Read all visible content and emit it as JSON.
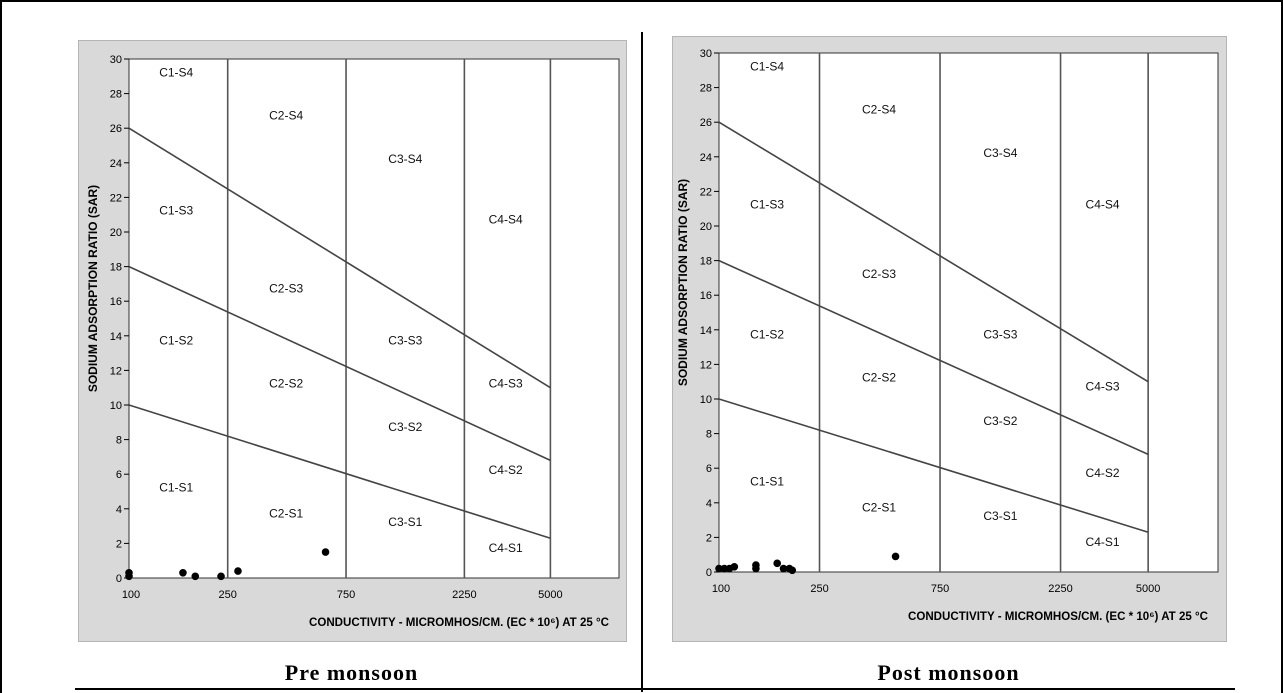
{
  "figure": {
    "captions": [
      "Pre monsoon",
      "Post monsoon"
    ]
  },
  "chart_data": [
    {
      "type": "scatter",
      "title": "",
      "xlabel": "CONDUCTIVITY - MICROMHOS/CM. (EC * 10⁶) AT 25 °C",
      "ylabel": "SODIUM ADSORPTION RATIO (SAR)",
      "x_ticks": [
        "100",
        "250",
        "750",
        "2250",
        "5000"
      ],
      "y_ticks": [
        "0",
        "2",
        "4",
        "6",
        "8",
        "10",
        "12",
        "14",
        "16",
        "18",
        "20",
        "22",
        "24",
        "26",
        "28",
        "30"
      ],
      "ylim": [
        0,
        30
      ],
      "x_scale": "log",
      "class_boundaries_ec": [
        250,
        750,
        2250
      ],
      "sar_hazard_lines": [
        {
          "from": [
            100,
            26
          ],
          "to": [
            5000,
            11
          ]
        },
        {
          "from": [
            100,
            18
          ],
          "to": [
            5000,
            6.8
          ]
        },
        {
          "from": [
            100,
            10
          ],
          "to": [
            5000,
            2.3
          ]
        }
      ],
      "zone_labels": [
        {
          "text": "C1-S4",
          "ec": 155,
          "sar": 29
        },
        {
          "text": "C1-S3",
          "ec": 155,
          "sar": 21
        },
        {
          "text": "C1-S2",
          "ec": 155,
          "sar": 13.5
        },
        {
          "text": "C1-S1",
          "ec": 155,
          "sar": 5
        },
        {
          "text": "C2-S4",
          "ec": 430,
          "sar": 26.5
        },
        {
          "text": "C2-S3",
          "ec": 430,
          "sar": 16.5
        },
        {
          "text": "C2-S2",
          "ec": 430,
          "sar": 11
        },
        {
          "text": "C2-S1",
          "ec": 430,
          "sar": 3.5
        },
        {
          "text": "C3-S4",
          "ec": 1300,
          "sar": 24
        },
        {
          "text": "C3-S3",
          "ec": 1300,
          "sar": 13.5
        },
        {
          "text": "C3-S2",
          "ec": 1300,
          "sar": 8.5
        },
        {
          "text": "C3-S1",
          "ec": 1300,
          "sar": 3
        },
        {
          "text": "C4-S4",
          "ec": 3300,
          "sar": 20.5
        },
        {
          "text": "C4-S3",
          "ec": 3300,
          "sar": 11
        },
        {
          "text": "C4-S2",
          "ec": 3300,
          "sar": 6
        },
        {
          "text": "C4-S1",
          "ec": 3300,
          "sar": 1.5
        }
      ],
      "points": [
        {
          "ec": 100,
          "sar": 0.3
        },
        {
          "ec": 100,
          "sar": 0.1
        },
        {
          "ec": 165,
          "sar": 0.3
        },
        {
          "ec": 185,
          "sar": 0.1
        },
        {
          "ec": 235,
          "sar": 0.1
        },
        {
          "ec": 275,
          "sar": 0.4
        },
        {
          "ec": 620,
          "sar": 1.5
        }
      ]
    },
    {
      "type": "scatter",
      "title": "",
      "xlabel": "CONDUCTIVITY - MICROMHOS/CM. (EC * 10⁶) AT 25 °C",
      "ylabel": "SODIUM ADSORPTION RATIO (SAR)",
      "x_ticks": [
        "100",
        "250",
        "750",
        "2250",
        "5000"
      ],
      "y_ticks": [
        "0",
        "2",
        "4",
        "6",
        "8",
        "10",
        "12",
        "14",
        "16",
        "18",
        "20",
        "22",
        "24",
        "26",
        "28",
        "30"
      ],
      "ylim": [
        0,
        30
      ],
      "x_scale": "log",
      "class_boundaries_ec": [
        250,
        750,
        2250
      ],
      "sar_hazard_lines": [
        {
          "from": [
            100,
            26
          ],
          "to": [
            5000,
            11
          ]
        },
        {
          "from": [
            100,
            18
          ],
          "to": [
            5000,
            6.8
          ]
        },
        {
          "from": [
            100,
            10
          ],
          "to": [
            5000,
            2.3
          ]
        }
      ],
      "zone_labels": [
        {
          "text": "C1-S4",
          "ec": 155,
          "sar": 29
        },
        {
          "text": "C1-S3",
          "ec": 155,
          "sar": 21
        },
        {
          "text": "C1-S2",
          "ec": 155,
          "sar": 13.5
        },
        {
          "text": "C1-S1",
          "ec": 155,
          "sar": 5
        },
        {
          "text": "C2-S4",
          "ec": 430,
          "sar": 26.5
        },
        {
          "text": "C2-S3",
          "ec": 430,
          "sar": 17
        },
        {
          "text": "C2-S2",
          "ec": 430,
          "sar": 11
        },
        {
          "text": "C2-S1",
          "ec": 430,
          "sar": 3.5
        },
        {
          "text": "C3-S4",
          "ec": 1300,
          "sar": 24
        },
        {
          "text": "C3-S3",
          "ec": 1300,
          "sar": 13.5
        },
        {
          "text": "C3-S2",
          "ec": 1300,
          "sar": 8.5
        },
        {
          "text": "C3-S1",
          "ec": 1300,
          "sar": 3
        },
        {
          "text": "C4-S4",
          "ec": 3300,
          "sar": 21
        },
        {
          "text": "C4-S3",
          "ec": 3300,
          "sar": 10.5
        },
        {
          "text": "C4-S2",
          "ec": 3300,
          "sar": 5.5
        },
        {
          "text": "C4-S1",
          "ec": 3300,
          "sar": 1.5
        }
      ],
      "points": [
        {
          "ec": 100,
          "sar": 0.2
        },
        {
          "ec": 105,
          "sar": 0.2
        },
        {
          "ec": 110,
          "sar": 0.2
        },
        {
          "ec": 115,
          "sar": 0.3
        },
        {
          "ec": 140,
          "sar": 0.2
        },
        {
          "ec": 140,
          "sar": 0.4
        },
        {
          "ec": 170,
          "sar": 0.5
        },
        {
          "ec": 180,
          "sar": 0.2
        },
        {
          "ec": 190,
          "sar": 0.2
        },
        {
          "ec": 195,
          "sar": 0.1
        },
        {
          "ec": 500,
          "sar": 0.9
        }
      ]
    }
  ]
}
